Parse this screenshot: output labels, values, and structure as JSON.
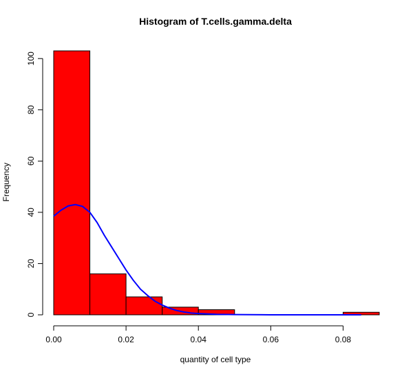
{
  "chart_data": {
    "type": "bar",
    "title": "Histogram of T.cells.gamma.delta",
    "xlabel": "quantity of cell type",
    "ylabel": "Frequency",
    "bins": [
      {
        "from": 0.0,
        "to": 0.01,
        "count": 103
      },
      {
        "from": 0.01,
        "to": 0.02,
        "count": 16
      },
      {
        "from": 0.02,
        "to": 0.03,
        "count": 7
      },
      {
        "from": 0.03,
        "to": 0.04,
        "count": 3
      },
      {
        "from": 0.04,
        "to": 0.05,
        "count": 2
      },
      {
        "from": 0.05,
        "to": 0.06,
        "count": 0
      },
      {
        "from": 0.06,
        "to": 0.07,
        "count": 0
      },
      {
        "from": 0.07,
        "to": 0.08,
        "count": 0
      },
      {
        "from": 0.08,
        "to": 0.09,
        "count": 1
      }
    ],
    "density_curve": {
      "x": [
        0.0,
        0.002,
        0.004,
        0.006,
        0.008,
        0.01,
        0.012,
        0.014,
        0.016,
        0.018,
        0.02,
        0.022,
        0.024,
        0.026,
        0.028,
        0.03,
        0.032,
        0.034,
        0.036,
        0.038,
        0.04,
        0.045,
        0.05,
        0.06,
        0.07,
        0.08,
        0.085
      ],
      "y": [
        38.5,
        40.8,
        42.5,
        43.0,
        42.3,
        40.0,
        36.0,
        31.0,
        26.5,
        22.0,
        17.5,
        13.5,
        10.0,
        7.5,
        5.3,
        3.8,
        2.6,
        1.7,
        1.1,
        0.7,
        0.5,
        0.2,
        0.1,
        0.0,
        0.0,
        0.0,
        0.0
      ],
      "color": "#0000ff"
    },
    "xlim": [
      0.0,
      0.09
    ],
    "ylim": [
      0,
      103
    ],
    "xticks": [
      0.0,
      0.02,
      0.04,
      0.06,
      0.08
    ],
    "xtick_labels": [
      "0.00",
      "0.02",
      "0.04",
      "0.06",
      "0.08"
    ],
    "yticks": [
      0,
      20,
      40,
      60,
      80,
      100
    ],
    "ytick_labels": [
      "0",
      "20",
      "40",
      "60",
      "80",
      "100"
    ],
    "bar_color": "#ff0000",
    "grid": false,
    "legend": "none"
  }
}
